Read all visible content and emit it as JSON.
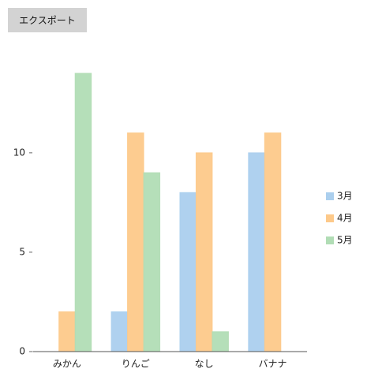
{
  "export_button": "エクスポート",
  "chart_data": {
    "type": "bar",
    "categories": [
      "みかん",
      "りんご",
      "なし",
      "バナナ"
    ],
    "series": [
      {
        "name": "3月",
        "color": "#abcfee",
        "values": [
          0,
          2,
          8,
          10
        ]
      },
      {
        "name": "4月",
        "color": "#fdc98a",
        "values": [
          2,
          11,
          10,
          11
        ]
      },
      {
        "name": "5月",
        "color": "#b1ddb5",
        "values": [
          14,
          9,
          1,
          0
        ]
      }
    ],
    "ylim": [
      0,
      14
    ],
    "yticks": [
      0,
      5,
      10
    ],
    "legend": "right"
  }
}
